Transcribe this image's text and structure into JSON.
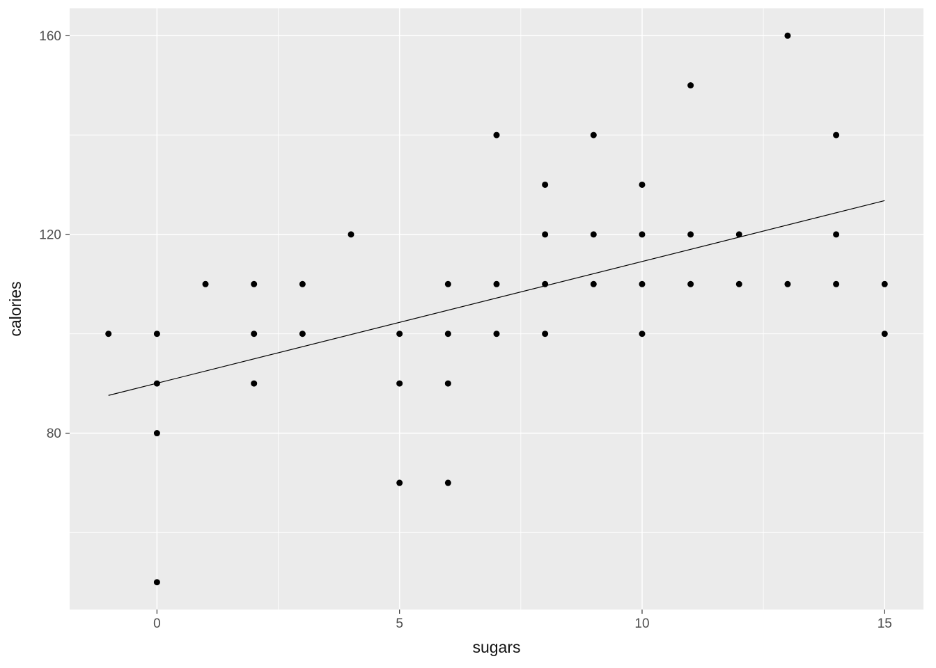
{
  "chart_data": {
    "type": "scatter",
    "title": "",
    "xlabel": "sugars",
    "ylabel": "calories",
    "xlim": [
      -1.8,
      15.8
    ],
    "ylim": [
      44.5,
      165.5
    ],
    "x_ticks": [
      0,
      5,
      10,
      15
    ],
    "x_minor_ticks": [
      2.5,
      7.5,
      12.5
    ],
    "y_ticks": [
      80,
      120,
      160
    ],
    "y_minor_ticks": [
      60,
      100,
      140
    ],
    "grid": "on",
    "legend_position": "none",
    "panel_bg": "#EBEBEB",
    "grid_color": "#FFFFFF",
    "point_color": "#000000",
    "line_color": "#000000",
    "tick_color": "#333333",
    "tick_label_color": "#4D4D4D",
    "axis_title_color": "#111111",
    "points": [
      [
        0,
        50
      ],
      [
        5,
        70
      ],
      [
        6,
        70
      ],
      [
        0,
        80
      ],
      [
        0,
        90
      ],
      [
        2,
        90
      ],
      [
        5,
        90
      ],
      [
        6,
        90
      ],
      [
        -1,
        100
      ],
      [
        0,
        100
      ],
      [
        2,
        100
      ],
      [
        3,
        100
      ],
      [
        5,
        100
      ],
      [
        6,
        100
      ],
      [
        7,
        100
      ],
      [
        8,
        100
      ],
      [
        10,
        100
      ],
      [
        15,
        100
      ],
      [
        1,
        110
      ],
      [
        2,
        110
      ],
      [
        3,
        110
      ],
      [
        6,
        110
      ],
      [
        7,
        110
      ],
      [
        8,
        110
      ],
      [
        9,
        110
      ],
      [
        10,
        110
      ],
      [
        11,
        110
      ],
      [
        12,
        110
      ],
      [
        13,
        110
      ],
      [
        14,
        110
      ],
      [
        15,
        110
      ],
      [
        4,
        120
      ],
      [
        8,
        120
      ],
      [
        9,
        120
      ],
      [
        10,
        120
      ],
      [
        11,
        120
      ],
      [
        12,
        120
      ],
      [
        14,
        120
      ],
      [
        8,
        130
      ],
      [
        10,
        130
      ],
      [
        7,
        140
      ],
      [
        9,
        140
      ],
      [
        14,
        140
      ],
      [
        11,
        150
      ],
      [
        13,
        160
      ]
    ],
    "regression_line": {
      "x1": -1,
      "y1": 87.6,
      "x2": 15,
      "y2": 126.8
    }
  }
}
